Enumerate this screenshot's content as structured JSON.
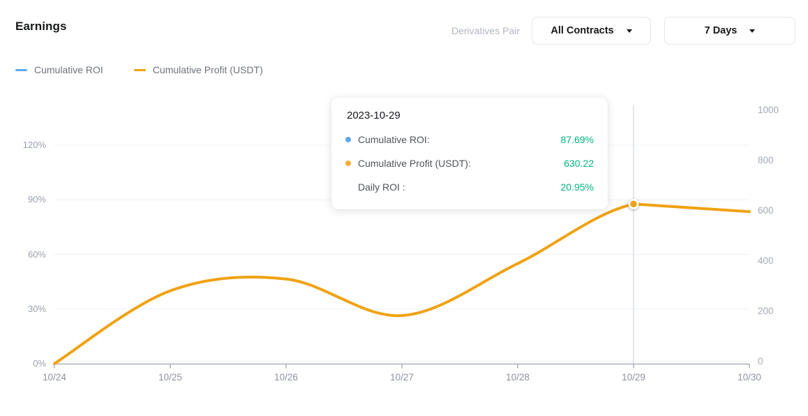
{
  "header": {
    "title": "Earnings",
    "pair_label": "Derivatives Pair",
    "pair_value": "All Contracts",
    "range_value": "7 Days"
  },
  "legend": {
    "items": [
      {
        "label": "Cumulative ROI",
        "color": "#5FA8EC"
      },
      {
        "label": "Cumulative Profit (USDT)",
        "color": "#EFA211"
      }
    ]
  },
  "tooltip": {
    "date": "2023-10-29",
    "rows": [
      {
        "label": "Cumulative ROI:",
        "value": "87.69%",
        "dot_color": "#5FA8EC"
      },
      {
        "label": "Cumulative Profit (USDT):",
        "value": "630.22",
        "dot_color": "#FAAE3A"
      },
      {
        "label": "Daily ROI :",
        "value": "20.95%",
        "dot_color": ""
      }
    ],
    "value_color": "#00B578"
  },
  "chart_data": {
    "type": "line",
    "x": [
      "10/24",
      "10/25",
      "10/26",
      "10/27",
      "10/28",
      "10/29",
      "10/30"
    ],
    "series": [
      {
        "name": "Cumulative ROI",
        "axis": "left",
        "unit": "%",
        "color": "#5FA8EC",
        "values": [
          0,
          40,
          46.5,
          26.4,
          55,
          87.69,
          83.5
        ],
        "note": "geometrically coincides with the profit line; hidden beneath it"
      },
      {
        "name": "Cumulative Profit (USDT)",
        "axis": "right",
        "unit": "USDT",
        "color": "#EFA211",
        "values": [
          0,
          287,
          334,
          190,
          395,
          630.22,
          600
        ]
      }
    ],
    "yticks_left": [
      "120%",
      "90%",
      "60%",
      "30%",
      "0%"
    ],
    "yticks_right": [
      "1000",
      "800",
      "600",
      "400",
      "200",
      "0"
    ],
    "ylim_left_percent": [
      0,
      150
    ],
    "ylim_right_usdt": [
      0,
      1000
    ],
    "grid": true,
    "legend_position": "top-left",
    "highlight": {
      "index": 5,
      "date": "2023-10-29",
      "cumulative_roi": "87.69%",
      "cumulative_profit_usdt": "630.22",
      "daily_roi": "20.95%"
    },
    "colors": {
      "grid": "#EEF1F4",
      "axis": "#A9B0BB",
      "crosshair": "#C8CDD5",
      "marker_fill": "#EFA211",
      "marker_ring": "#FFFFFF"
    }
  }
}
